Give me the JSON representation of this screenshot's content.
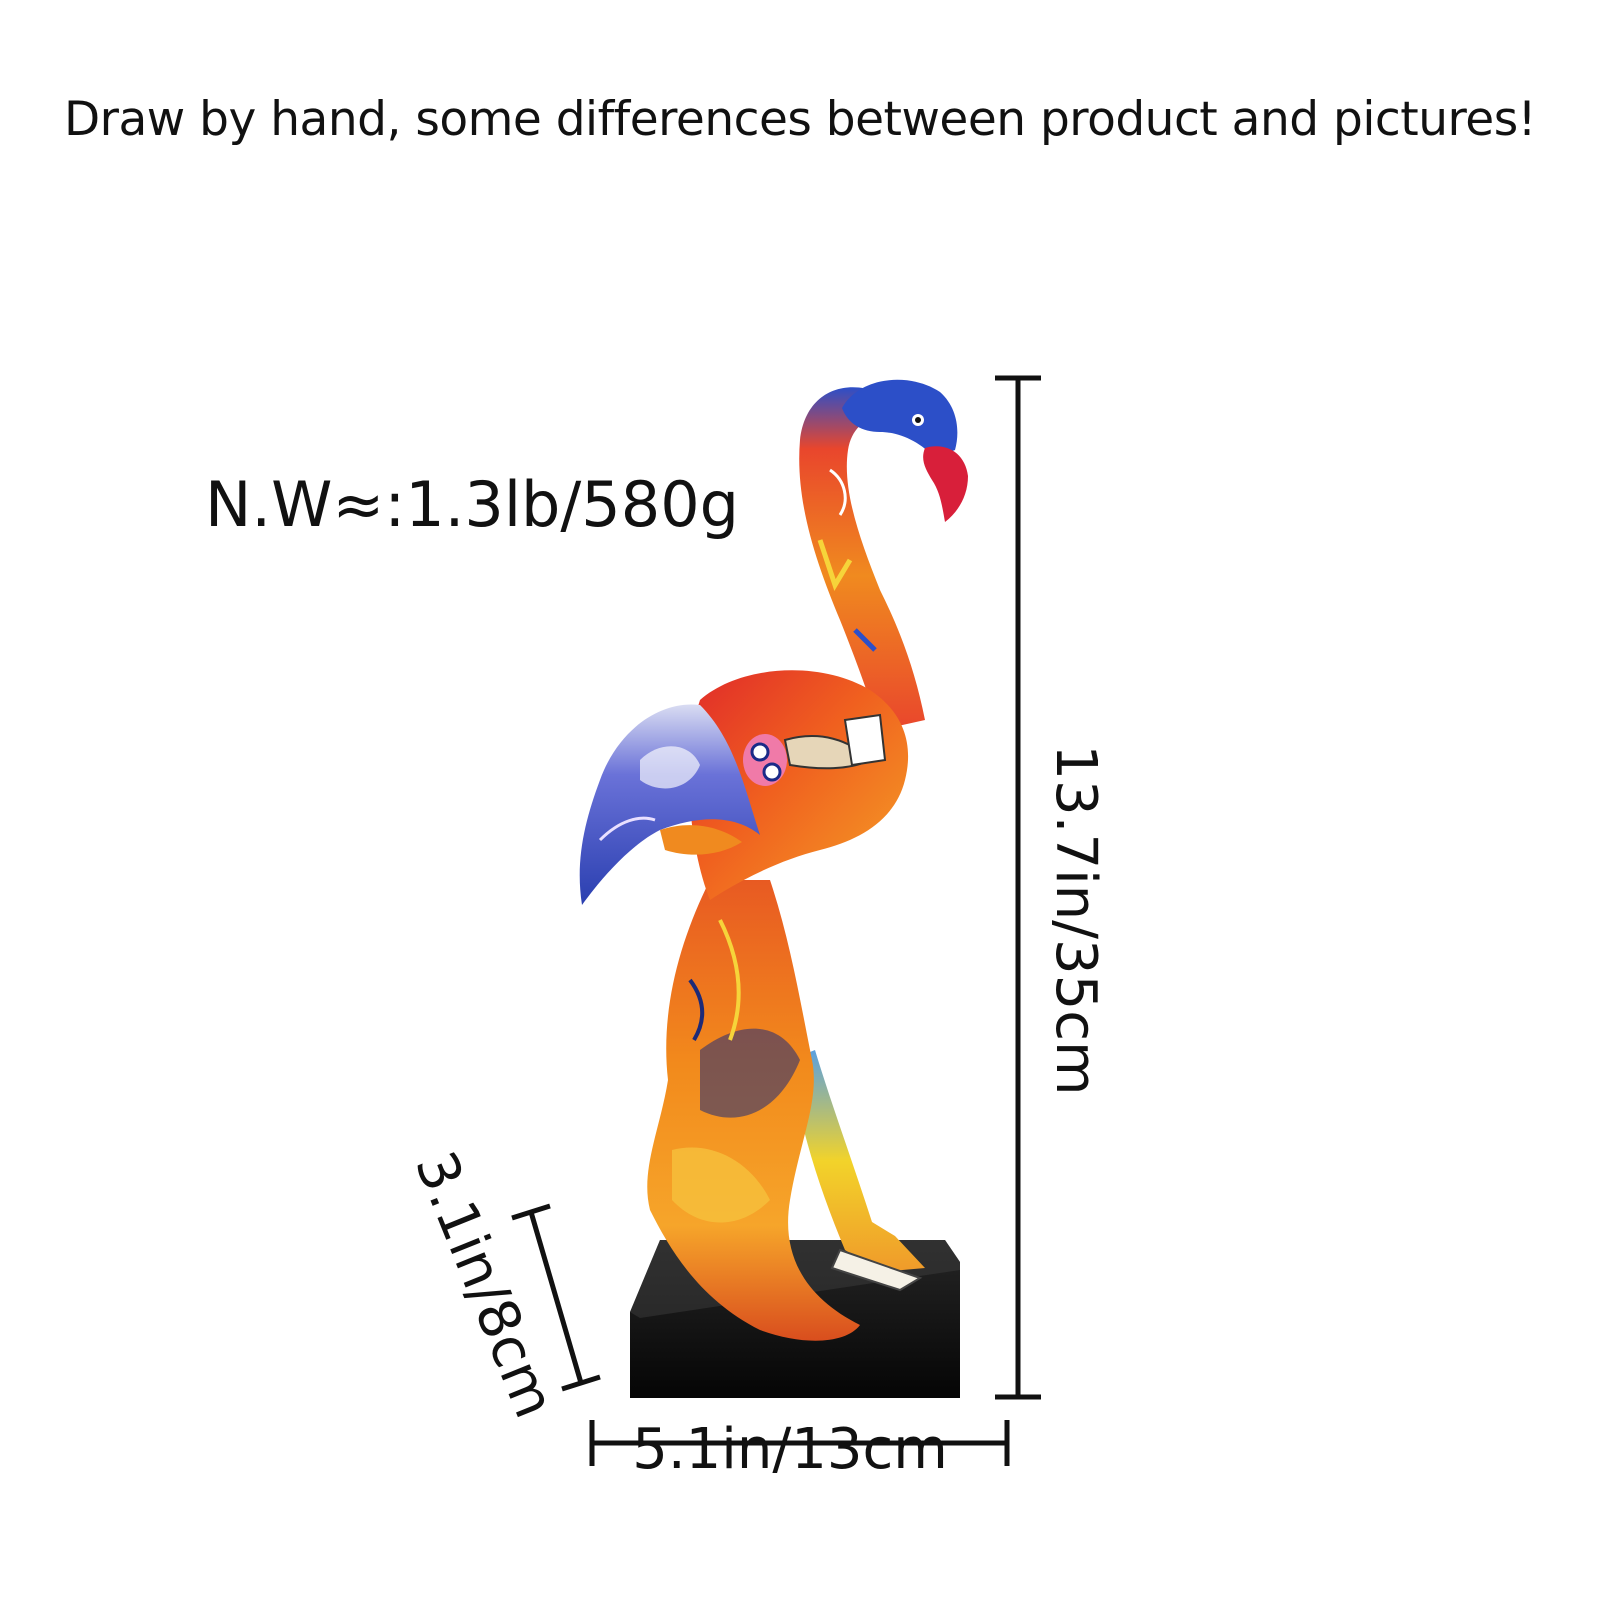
{
  "notice": "Draw by hand, some differences between product and pictures!",
  "weight": "N.W≈:1.3lb/580g",
  "dimensions": {
    "height": "13.7in/35cm",
    "width": "5.1in/13cm",
    "depth": "3.1in/8cm"
  },
  "colors": {
    "text": "#111111",
    "base": "#0d0d0d",
    "beak": "#d81f3a",
    "head": "#2c4fc8",
    "neck": "#e9462c",
    "body": "#f08a1f",
    "wing": "#3d52c9",
    "leg": "#f2d32a"
  }
}
